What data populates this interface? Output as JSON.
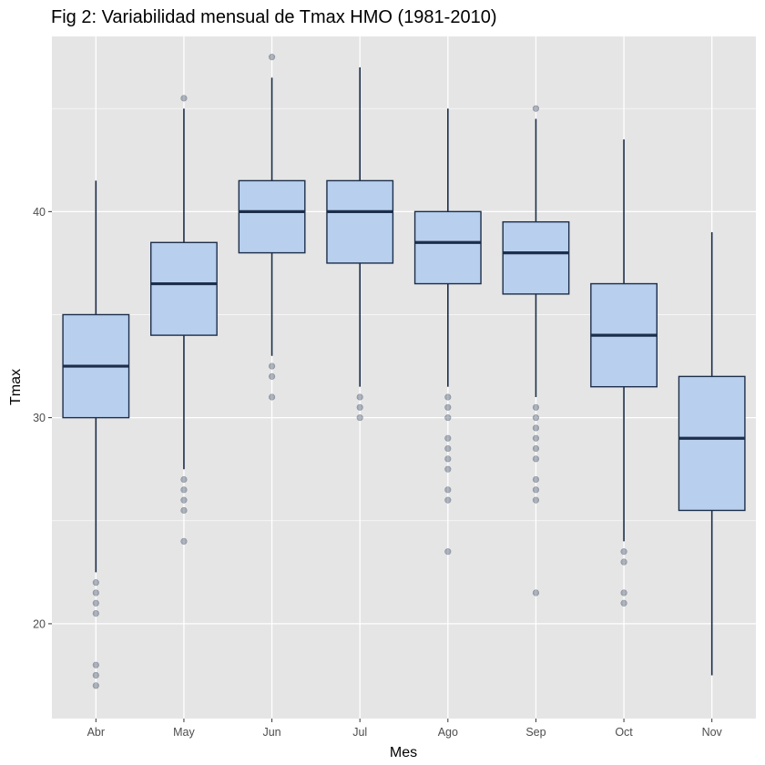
{
  "chart_data": {
    "type": "boxplot",
    "title": "Fig 2: Variabilidad mensual de Tmax HMO (1981-2010)",
    "xlabel": "Mes",
    "ylabel": "Tmax",
    "categories": [
      "Abr",
      "May",
      "Jun",
      "Jul",
      "Ago",
      "Sep",
      "Oct",
      "Nov"
    ],
    "ylim": [
      15.4,
      48.5
    ],
    "y_major_ticks": [
      20,
      30,
      40
    ],
    "y_minor_gridlines": [
      15,
      25,
      35,
      45
    ],
    "grid": true,
    "colors": {
      "panel": "#e5e5e5",
      "grid": "#ffffff",
      "box_fill": "#b8cfee",
      "box_line": "#1c2e4a",
      "outlier": "#1c2e4a"
    },
    "boxes": [
      {
        "category": "Abr",
        "lower_whisker": 22.5,
        "q1": 30.0,
        "median": 32.5,
        "q3": 35.0,
        "upper_whisker": 41.5,
        "outliers": [
          22.0,
          21.5,
          21.0,
          20.5,
          18.0,
          17.5,
          17.0
        ]
      },
      {
        "category": "May",
        "lower_whisker": 27.5,
        "q1": 34.0,
        "median": 36.5,
        "q3": 38.5,
        "upper_whisker": 45.0,
        "outliers": [
          45.5,
          27.0,
          26.5,
          26.0,
          25.5,
          24.0
        ]
      },
      {
        "category": "Jun",
        "lower_whisker": 33.0,
        "q1": 38.0,
        "median": 40.0,
        "q3": 41.5,
        "upper_whisker": 46.5,
        "outliers": [
          47.5,
          32.5,
          32.0,
          31.0
        ]
      },
      {
        "category": "Jul",
        "lower_whisker": 31.5,
        "q1": 37.5,
        "median": 40.0,
        "q3": 41.5,
        "upper_whisker": 47.0,
        "outliers": [
          31.0,
          30.5,
          30.0
        ]
      },
      {
        "category": "Ago",
        "lower_whisker": 31.5,
        "q1": 36.5,
        "median": 38.5,
        "q3": 40.0,
        "upper_whisker": 45.0,
        "outliers": [
          31.0,
          30.5,
          30.0,
          29.0,
          28.5,
          28.0,
          27.5,
          26.5,
          26.0,
          23.5
        ]
      },
      {
        "category": "Sep",
        "lower_whisker": 31.0,
        "q1": 36.0,
        "median": 38.0,
        "q3": 39.5,
        "upper_whisker": 44.5,
        "outliers": [
          45.0,
          30.5,
          30.0,
          29.5,
          29.0,
          28.5,
          28.0,
          27.0,
          26.5,
          26.0,
          21.5
        ]
      },
      {
        "category": "Oct",
        "lower_whisker": 24.0,
        "q1": 31.5,
        "median": 34.0,
        "q3": 36.5,
        "upper_whisker": 43.5,
        "outliers": [
          23.5,
          23.0,
          21.5,
          21.0
        ]
      },
      {
        "category": "Nov",
        "lower_whisker": 17.5,
        "q1": 25.5,
        "median": 29.0,
        "q3": 32.0,
        "upper_whisker": 39.0,
        "outliers": []
      }
    ]
  }
}
